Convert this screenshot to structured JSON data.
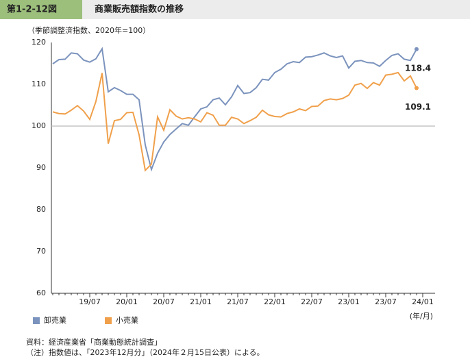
{
  "chart_data": {
    "type": "line",
    "figure_number": "第1-2-12図",
    "title": "商業販売額指数の推移",
    "subtitle": "（季節調整済指数、2020年=100）",
    "x_label": "(年/月)",
    "categories": [
      null,
      null,
      null,
      null,
      null,
      null,
      "19/07",
      null,
      null,
      null,
      null,
      null,
      "20/01",
      null,
      null,
      null,
      null,
      null,
      "20/07",
      null,
      null,
      null,
      null,
      null,
      "21/01",
      null,
      null,
      null,
      null,
      null,
      "21/07",
      null,
      null,
      null,
      null,
      null,
      "22/01",
      null,
      null,
      null,
      null,
      null,
      "22/07",
      null,
      null,
      null,
      null,
      null,
      "23/01",
      null,
      null,
      null,
      null,
      null,
      "23/07",
      null,
      null,
      null,
      null,
      null,
      "24/01"
    ],
    "series": [
      {
        "name": "卸売業",
        "color": "#7b93bd",
        "values": [
          114.9,
          115.9,
          116.0,
          117.5,
          117.3,
          115.8,
          115.3,
          116.1,
          118.5,
          108.2,
          109.2,
          108.5,
          107.6,
          107.6,
          106.3,
          95.5,
          89.6,
          93.5,
          96.2,
          98.0,
          99.3,
          100.6,
          100.2,
          102.2,
          104.1,
          104.6,
          106.3,
          106.7,
          105.1,
          107.0,
          109.7,
          107.8,
          108.0,
          109.2,
          111.2,
          111.0,
          112.8,
          113.6,
          114.9,
          115.4,
          115.2,
          116.5,
          116.6,
          117.0,
          117.5,
          116.8,
          116.4,
          116.8,
          113.9,
          115.5,
          115.7,
          115.2,
          115.1,
          114.3,
          115.7,
          116.9,
          117.3,
          116.0,
          115.7,
          118.4,
          null
        ]
      },
      {
        "name": "小売業",
        "color": "#f0a04b",
        "values": [
          103.4,
          103.0,
          102.9,
          103.8,
          104.9,
          103.6,
          101.6,
          105.9,
          112.7,
          95.8,
          101.3,
          101.6,
          103.2,
          103.3,
          97.9,
          89.4,
          90.9,
          102.2,
          99.0,
          103.9,
          102.4,
          101.7,
          102.0,
          101.7,
          101.0,
          103.2,
          102.6,
          100.2,
          100.2,
          102.1,
          101.7,
          100.6,
          101.3,
          102.1,
          103.8,
          102.7,
          102.3,
          102.2,
          103.0,
          103.4,
          104.1,
          103.7,
          104.7,
          104.8,
          106.1,
          106.5,
          106.3,
          106.6,
          107.4,
          109.8,
          110.2,
          109.0,
          110.4,
          109.8,
          112.2,
          112.4,
          112.8,
          110.8,
          112.0,
          109.1,
          null
        ]
      }
    ],
    "ylim": [
      60,
      120
    ],
    "yticks": [
      60,
      70,
      80,
      90,
      100,
      110,
      120
    ],
    "reference_line": 100,
    "legend": "bottom-left",
    "notes": [
      "資料：経済産業省「商業動態統計調査」",
      "（注）指数値は、「2023年12月分」（2024年２月15日公表）による。"
    ]
  }
}
